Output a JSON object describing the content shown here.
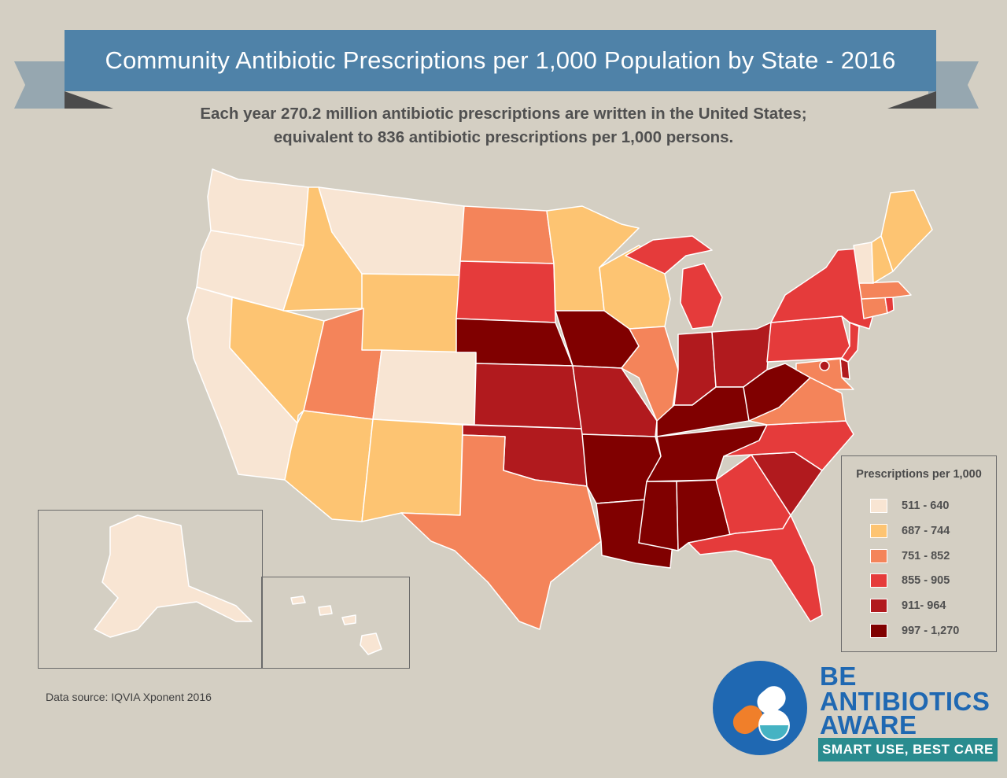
{
  "title": "Community Antibiotic Prescriptions per 1,000 Population by State - 2016",
  "subtitle_line1": "Each year 270.2 million antibiotic prescriptions are written in the United States;",
  "subtitle_line2": "equivalent to 836 antibiotic prescriptions per 1,000 persons.",
  "legend": {
    "title": "Prescriptions per 1,000",
    "bins": [
      {
        "label": "511 - 640",
        "color": "#f8e5d3"
      },
      {
        "label": "687 - 744",
        "color": "#fdc472"
      },
      {
        "label": "751 - 852",
        "color": "#f4845a"
      },
      {
        "label": "855 - 905",
        "color": "#e53b3b"
      },
      {
        "label": "911- 964",
        "color": "#b11a1e"
      },
      {
        "label": "997 - 1,270",
        "color": "#800000"
      }
    ]
  },
  "state_bins": {
    "WA": 0,
    "OR": 0,
    "CA": 0,
    "MT": 0,
    "CO": 0,
    "AK": 0,
    "HI": 0,
    "VT": 0,
    "ID": 1,
    "NV": 1,
    "WY": 1,
    "AZ": 1,
    "NM": 1,
    "MN": 1,
    "WI": 1,
    "ME": 1,
    "NH": 1,
    "UT": 2,
    "ND": 2,
    "TX": 2,
    "IL": 2,
    "VA": 2,
    "MA": 2,
    "CT": 2,
    "MD": 2,
    "SD": 3,
    "MI": 3,
    "NY": 3,
    "PA": 3,
    "NC": 3,
    "GA": 3,
    "FL": 3,
    "RI": 3,
    "NJ": 3,
    "KS": 4,
    "OK": 4,
    "MO": 4,
    "IN": 4,
    "OH": 4,
    "SC": 4,
    "DE": 4,
    "DC": 4,
    "NE": 5,
    "IA": 5,
    "AR": 5,
    "LA": 5,
    "MS": 5,
    "AL": 5,
    "TN": 5,
    "KY": 5,
    "WV": 5
  },
  "source": "Data source: IQVIA Xponent 2016",
  "logo": {
    "line1": "BE",
    "line2": "ANTIBIOTICS",
    "line3": "AWARE",
    "tagline": "SMART USE, BEST CARE",
    "icon": "pill-capsule-icon"
  }
}
